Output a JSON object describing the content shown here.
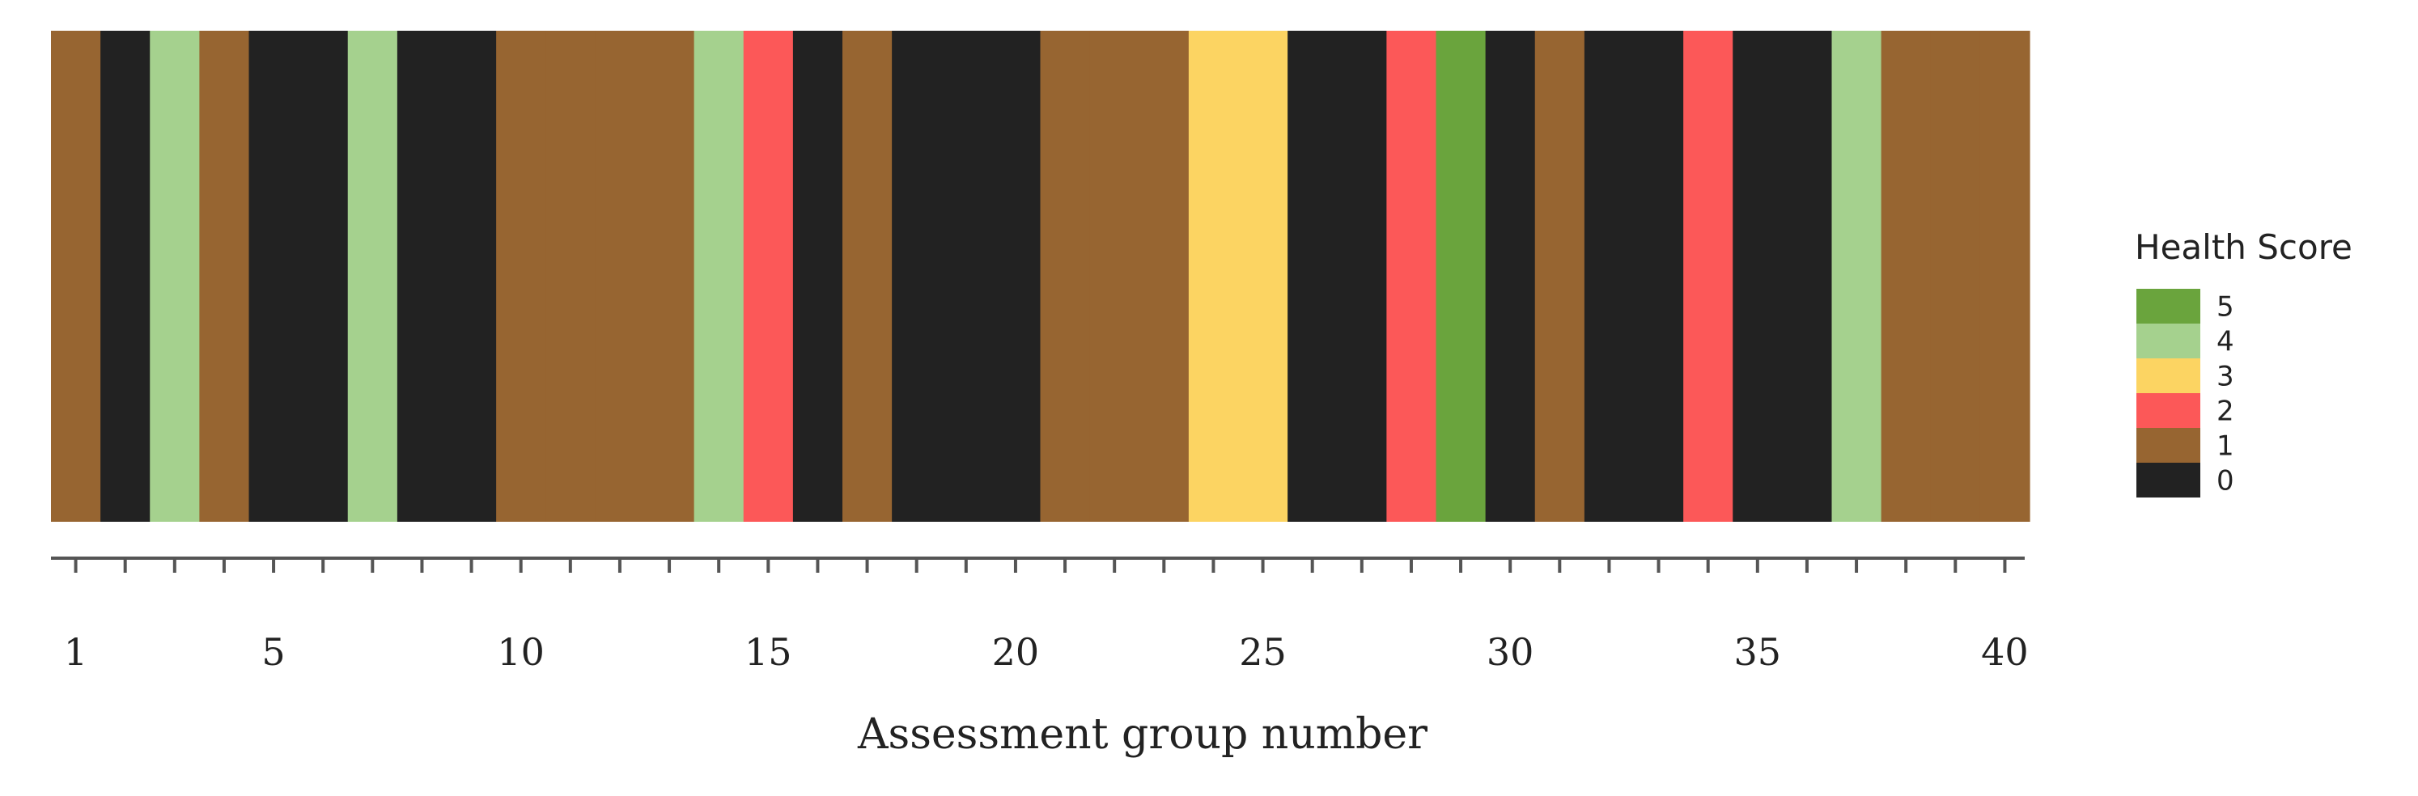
{
  "chart_data": {
    "type": "heatmap",
    "title": "",
    "xlabel": "Assessment group number",
    "ylabel": "",
    "x": [
      1,
      2,
      3,
      4,
      5,
      6,
      7,
      8,
      9,
      10,
      11,
      12,
      13,
      14,
      15,
      16,
      17,
      18,
      19,
      20,
      21,
      22,
      23,
      24,
      25,
      26,
      27,
      28,
      29,
      30,
      31,
      32,
      33,
      34,
      35,
      36,
      37,
      38,
      39,
      40
    ],
    "values": [
      1,
      0,
      4,
      1,
      0,
      0,
      4,
      0,
      0,
      1,
      1,
      1,
      1,
      4,
      2,
      0,
      1,
      0,
      0,
      0,
      1,
      1,
      1,
      3,
      3,
      0,
      0,
      2,
      5,
      0,
      1,
      0,
      0,
      2,
      0,
      0,
      4,
      1,
      1,
      1
    ],
    "xlim": [
      1,
      40
    ],
    "x_tick_labels": [
      "1",
      "5",
      "10",
      "15",
      "20",
      "25",
      "30",
      "35",
      "40"
    ],
    "x_tick_values": [
      1,
      5,
      10,
      15,
      20,
      25,
      30,
      35,
      40
    ],
    "grid": false,
    "legend": {
      "title": "Health Score",
      "placement": "right",
      "entries": [
        {
          "label": "5",
          "value": 5
        },
        {
          "label": "4",
          "value": 4
        },
        {
          "label": "3",
          "value": 3
        },
        {
          "label": "2",
          "value": 2
        },
        {
          "label": "1",
          "value": 1
        },
        {
          "label": "0",
          "value": 0
        }
      ]
    },
    "colors": {
      "0": "#222222",
      "1": "#976531",
      "2": "#fc5858",
      "3": "#fcd462",
      "4": "#a5d18e",
      "5": "#6aa43d"
    }
  }
}
